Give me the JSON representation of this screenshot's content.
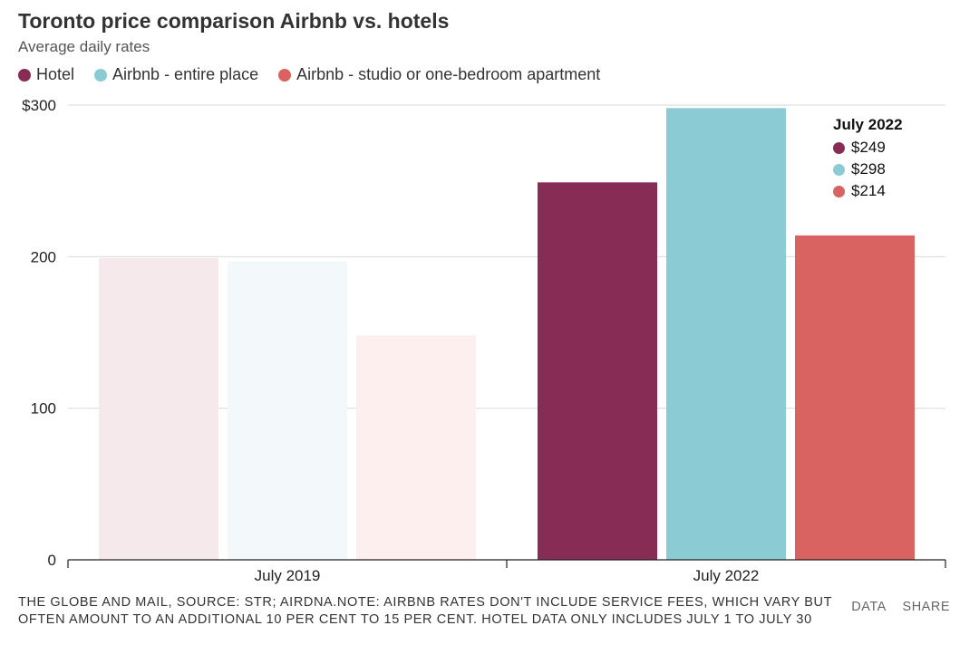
{
  "header": {
    "title": "Toronto price comparison Airbnb vs. hotels",
    "subtitle": "Average daily rates"
  },
  "legend": [
    {
      "label": "Hotel",
      "color": "#862c55"
    },
    {
      "label": "Airbnb - entire place",
      "color": "#8bcbd3"
    },
    {
      "label": "Airbnb - studio or one-bedroom apartment",
      "color": "#d86360"
    }
  ],
  "tooltip": {
    "title": "July 2022",
    "rows": [
      {
        "value": "$249",
        "color": "#862c55"
      },
      {
        "value": "$298",
        "color": "#8bcbd3"
      },
      {
        "value": "$214",
        "color": "#d86360"
      }
    ]
  },
  "chart_data": {
    "type": "bar",
    "categories": [
      "July 2019",
      "July 2022"
    ],
    "series": [
      {
        "name": "Hotel",
        "values": [
          199,
          249
        ],
        "color": "#862c55",
        "faded_color": "#f5e9ec"
      },
      {
        "name": "Airbnb - entire place",
        "values": [
          197,
          298
        ],
        "color": "#8bcbd3",
        "faded_color": "#f3f8fb"
      },
      {
        "name": "Airbnb - studio or one-bedroom apartment",
        "values": [
          148,
          214
        ],
        "color": "#d86360",
        "faded_color": "#fcefed"
      }
    ],
    "ylim": [
      0,
      300
    ],
    "yticks": [
      0,
      100,
      200,
      300
    ],
    "ytick_labels": [
      "0",
      "100",
      "200",
      "$300"
    ],
    "highlighted_category": "July 2022",
    "grid": true
  },
  "footer": {
    "source": "THE GLOBE AND MAIL, SOURCE: STR; AIRDNA.NOTE: AIRBNB RATES DON'T INCLUDE SERVICE FEES, WHICH VARY BUT OFTEN AMOUNT TO AN ADDITIONAL 10 PER CENT TO 15 PER CENT. HOTEL DATA ONLY INCLUDES JULY 1 TO JULY 30",
    "data_link": "DATA",
    "share_link": "SHARE"
  }
}
